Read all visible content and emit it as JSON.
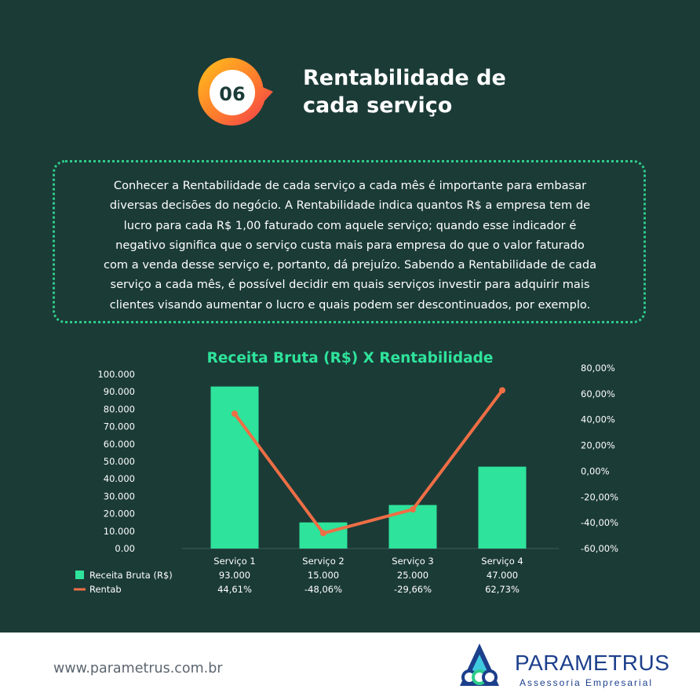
{
  "header": {
    "number": "06",
    "title_line1": "Rentabilidade de",
    "title_line2": "cada serviço"
  },
  "description": [
    "Conhecer a Rentabilidade de cada serviço a cada mês é importante para embasar",
    "diversas decisões do negócio. A Rentabilidade indica quantos R$ a empresa tem de",
    "lucro para cada R$ 1,00 faturado com aquele serviço; quando esse indicador é",
    "negativo significa que o serviço custa mais para empresa do que o valor faturado",
    "com a venda desse serviço e, portanto, dá prejuízo. Sabendo a Rentabilidade de cada",
    "serviço a cada mês, é possível decidir em quais serviços investir para adquirir mais",
    "clientes visando aumentar o lucro e quais podem ser descontinuados, por exemplo."
  ],
  "chart_data": {
    "type": "bar",
    "title": "Receita Bruta (R$) X Rentabilidade",
    "categories": [
      "Serviço 1",
      "Serviço 2",
      "Serviço 3",
      "Serviço 4"
    ],
    "series": [
      {
        "name": "Receita Bruta (R$)",
        "type": "bar",
        "axis": "left",
        "values": [
          93000,
          15000,
          25000,
          47000
        ],
        "labels": [
          "93.000",
          "15.000",
          "25.000",
          "47.000"
        ]
      },
      {
        "name": "Rentab",
        "type": "line",
        "axis": "right",
        "values": [
          44.61,
          -48.06,
          -29.66,
          62.73
        ],
        "labels": [
          "44,61%",
          "-48,06%",
          "-29,66%",
          "62,73%"
        ]
      }
    ],
    "left_axis": {
      "min": 0,
      "max": 100000,
      "ticks": [
        "0.00",
        "10.000",
        "20.000",
        "30.000",
        "40.000",
        "50.000",
        "60.000",
        "70.000",
        "80.000",
        "90.000",
        "100.000"
      ]
    },
    "right_axis": {
      "min": -60,
      "max": 80,
      "ticks": [
        "-60,00%",
        "-40,00%",
        "-20,00%",
        "0,00%",
        "20,00%",
        "40,00%",
        "60,00%",
        "80,00%"
      ]
    },
    "legend_placement": "bottom data table",
    "grid": false
  },
  "colors": {
    "background": "#1b3b37",
    "bar": "#2ee39b",
    "line": "#ee6e45",
    "accent": "#2ecc8a"
  },
  "footer": {
    "url": "www.parametrus.com.br",
    "brand": "PARAMETRUS",
    "tagline": "Assessoria Empresarial"
  }
}
